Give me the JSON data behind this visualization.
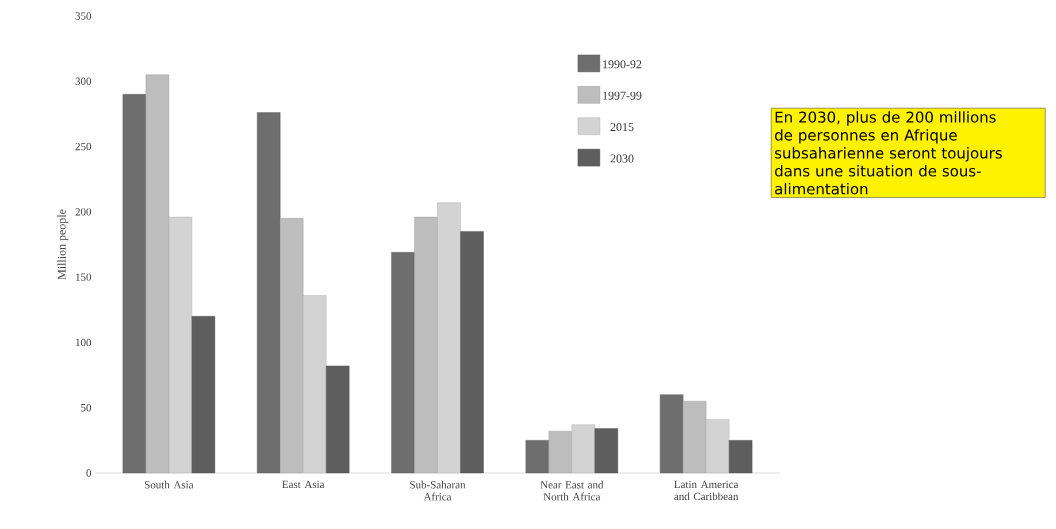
{
  "chart_data": {
    "type": "bar",
    "ylabel": "Million people",
    "categories": [
      "South Asia",
      "East Asia",
      "Sub-Saharan Africa",
      "Near East and North Africa",
      "Latin America and Caribbean"
    ],
    "series": [
      {
        "name": "1990-92",
        "color": "#6e6e6e",
        "values": [
          290,
          276,
          169,
          25,
          60
        ]
      },
      {
        "name": "1997-99",
        "color": "#bdbdbd",
        "values": [
          305,
          195,
          196,
          32,
          55
        ]
      },
      {
        "name": "2015",
        "color": "#d3d3d3",
        "values": [
          196,
          136,
          207,
          37,
          41
        ]
      },
      {
        "name": "2030",
        "color": "#5e5e5e",
        "values": [
          120,
          82,
          185,
          34,
          25
        ]
      }
    ],
    "ylim": [
      0,
      350
    ],
    "yticks": [
      0,
      50,
      100,
      150,
      200,
      250,
      300,
      350
    ],
    "legend": "top right",
    "grid": false,
    "annotations": [
      "En 2030, plus de 200 millions de personnes en Afrique subsaharienne seront toujours dans une situation de sous-alimentation"
    ]
  }
}
